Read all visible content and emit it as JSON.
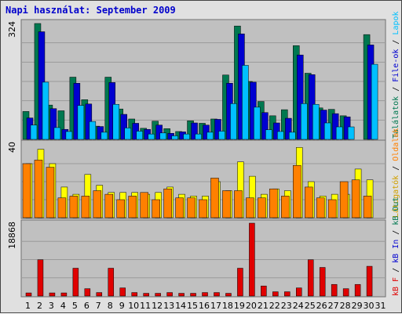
{
  "title": "Napi használat: September 2009",
  "colors": {
    "hits": "#007850",
    "files": "#0000d0",
    "pages": "#00c0ff",
    "visits": "#ffff00",
    "sites": "#ff8000",
    "kb": "#e00000",
    "panel_bg": "#c0c0c0",
    "weekend_label": "#008060",
    "weekday_label": "#000000"
  },
  "legend_right": {
    "top": [
      {
        "text": "Találatok",
        "color": "#007850"
      },
      {
        "text": "File-ok",
        "color": "#0000d0"
      },
      {
        "text": "Lapok",
        "color": "#00c0ff"
      }
    ],
    "middle": [
      {
        "text": "Látogatók",
        "color": "#d0a000"
      },
      {
        "text": "Oldalak",
        "color": "#ff8000"
      }
    ],
    "bottom": [
      {
        "text": "kB F",
        "color": "#e00000"
      },
      {
        "text": "kB In",
        "color": "#0000d0"
      },
      {
        "text": "kB Out",
        "color": "#007850"
      }
    ],
    "separator": " / "
  },
  "chart_data": [
    {
      "type": "bar",
      "name": "hits-files-pages",
      "ymax_label": "324",
      "ylim": [
        0,
        324
      ],
      "categories": [
        "1",
        "2",
        "3",
        "4",
        "5",
        "6",
        "7",
        "8",
        "9",
        "10",
        "11",
        "12",
        "13",
        "14",
        "15",
        "16",
        "17",
        "18",
        "19",
        "20",
        "21",
        "22",
        "23",
        "24",
        "25",
        "26",
        "27",
        "28",
        "29",
        "30",
        "31"
      ],
      "series": [
        {
          "name": "Találatok",
          "values": [
            78,
            324,
            96,
            80,
            174,
            111,
            37,
            174,
            85,
            57,
            31,
            51,
            30,
            22,
            52,
            45,
            57,
            180,
            317,
            162,
            106,
            66,
            83,
            262,
            185,
            88,
            84,
            66,
            0,
            293,
            0
          ]
        },
        {
          "name": "File-ok",
          "values": [
            60,
            301,
            86,
            28,
            157,
            99,
            36,
            159,
            70,
            45,
            28,
            40,
            17,
            21,
            46,
            40,
            56,
            157,
            295,
            160,
            75,
            46,
            59,
            236,
            181,
            82,
            72,
            63,
            0,
            264,
            0
          ]
        },
        {
          "name": "Lapok",
          "values": [
            40,
            160,
            33,
            22,
            95,
            50,
            20,
            98,
            32,
            23,
            15,
            18,
            10,
            15,
            15,
            20,
            23,
            100,
            207,
            90,
            27,
            22,
            20,
            100,
            98,
            46,
            35,
            35,
            0,
            210,
            0
          ]
        }
      ]
    },
    {
      "type": "bar",
      "name": "visits-sites",
      "ymax_label": "40",
      "ylim": [
        0,
        40
      ],
      "categories": [
        "1",
        "2",
        "3",
        "4",
        "5",
        "6",
        "7",
        "8",
        "9",
        "10",
        "11",
        "12",
        "13",
        "14",
        "15",
        "16",
        "17",
        "18",
        "19",
        "20",
        "21",
        "22",
        "23",
        "24",
        "25",
        "26",
        "27",
        "28",
        "29",
        "30",
        "31"
      ],
      "series": [
        {
          "name": "Látogatók",
          "values": [
            30,
            38,
            30,
            17,
            13,
            24,
            18,
            14,
            14,
            14,
            13,
            14,
            17,
            13,
            12,
            12,
            20,
            15,
            31,
            23,
            13,
            16,
            15,
            39,
            20,
            12,
            13,
            13,
            27,
            21,
            0
          ]
        },
        {
          "name": "Oldalak",
          "values": [
            30,
            32,
            28,
            11,
            12,
            12,
            15,
            13,
            10,
            12,
            14,
            10,
            16,
            11,
            11,
            10,
            22,
            15,
            15,
            11,
            11,
            16,
            12,
            29,
            17,
            11,
            10,
            20,
            21,
            12,
            0
          ]
        }
      ]
    },
    {
      "type": "bar",
      "name": "kb",
      "ymax_label": "18868",
      "ylim": [
        0,
        18868
      ],
      "categories": [
        "1",
        "2",
        "3",
        "4",
        "5",
        "6",
        "7",
        "8",
        "9",
        "10",
        "11",
        "12",
        "13",
        "14",
        "15",
        "16",
        "17",
        "18",
        "19",
        "20",
        "21",
        "22",
        "23",
        "24",
        "25",
        "26",
        "27",
        "28",
        "29",
        "30",
        "31"
      ],
      "series": [
        {
          "name": "kB F",
          "values": [
            800,
            9400,
            800,
            800,
            7200,
            1900,
            900,
            7200,
            2100,
            900,
            700,
            700,
            900,
            700,
            700,
            900,
            900,
            700,
            7200,
            18868,
            2600,
            1100,
            1100,
            2100,
            9400,
            7400,
            3000,
            1900,
            3000,
            7700,
            0
          ]
        }
      ]
    }
  ],
  "weekends": [
    "5",
    "6",
    "12",
    "13",
    "19",
    "20",
    "26",
    "27"
  ]
}
